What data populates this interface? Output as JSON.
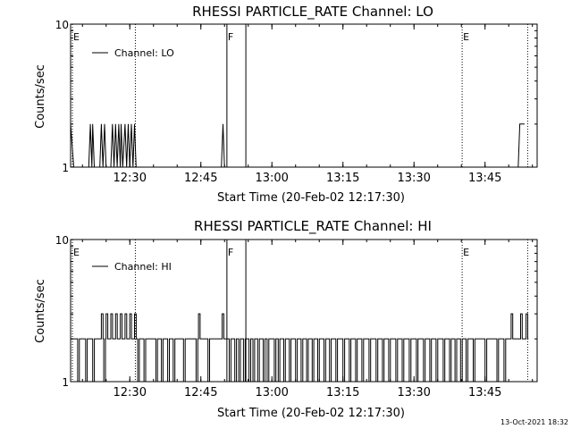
{
  "chart_data": [
    {
      "type": "line",
      "title": "RHESSI PARTICLE_RATE Channel: LO",
      "xlabel": "Start Time (20-Feb-02 12:17:30)",
      "ylabel": "Counts/sec",
      "y_scale": "log",
      "ylim": [
        1,
        10
      ],
      "y_ticks": [
        "1",
        "10"
      ],
      "x_ticks": [
        "12:30",
        "12:45",
        "13:00",
        "13:15",
        "13:30",
        "13:45"
      ],
      "legend": "Channel: LO",
      "series": [
        {
          "name": "Channel: LO",
          "values": [
            {
              "x": "12:17:30",
              "y": 2
            },
            {
              "x": "12:18:10",
              "y": 1
            },
            {
              "x": "12:21:20",
              "y": 1
            },
            {
              "x": "12:21:40",
              "y": 2
            },
            {
              "x": "12:22:00",
              "y": 1
            },
            {
              "x": "12:22:10",
              "y": 2
            },
            {
              "x": "12:22:30",
              "y": 1
            },
            {
              "x": "12:23:40",
              "y": 1
            },
            {
              "x": "12:24:00",
              "y": 2
            },
            {
              "x": "12:24:20",
              "y": 1
            },
            {
              "x": "12:24:40",
              "y": 2
            },
            {
              "x": "12:25:00",
              "y": 1
            },
            {
              "x": "12:26:00",
              "y": 1
            },
            {
              "x": "12:26:20",
              "y": 2
            },
            {
              "x": "12:26:40",
              "y": 1
            },
            {
              "x": "12:27:00",
              "y": 2
            },
            {
              "x": "12:27:20",
              "y": 1
            },
            {
              "x": "12:27:40",
              "y": 2
            },
            {
              "x": "12:28:00",
              "y": 1
            },
            {
              "x": "12:28:10",
              "y": 2
            },
            {
              "x": "12:28:30",
              "y": 1
            },
            {
              "x": "12:29:00",
              "y": 2
            },
            {
              "x": "12:29:20",
              "y": 1
            },
            {
              "x": "12:29:40",
              "y": 2
            },
            {
              "x": "12:30:00",
              "y": 1
            },
            {
              "x": "12:30:20",
              "y": 2
            },
            {
              "x": "12:30:40",
              "y": 1
            },
            {
              "x": "12:31:00",
              "y": 2
            },
            {
              "x": "12:31:20",
              "y": 1
            },
            {
              "x": "12:49:20",
              "y": 1
            },
            {
              "x": "12:49:40",
              "y": 2
            },
            {
              "x": "12:50:00",
              "y": 1
            },
            {
              "x": "13:52:00",
              "y": 1
            },
            {
              "x": "13:52:20",
              "y": 2
            },
            {
              "x": "13:53:20",
              "y": 2
            }
          ]
        }
      ],
      "markers": [
        {
          "label": "E",
          "time": "12:17:30",
          "style": "dotted"
        },
        {
          "label": "",
          "time": "12:31:10",
          "style": "dotted"
        },
        {
          "label": "F",
          "time": "12:50:30",
          "style": "solid"
        },
        {
          "label": "",
          "time": "12:54:30",
          "style": "solid"
        },
        {
          "label": "E",
          "time": "13:40:10",
          "style": "dotted"
        },
        {
          "label": "",
          "time": "13:54:00",
          "style": "dotted"
        }
      ]
    },
    {
      "type": "line",
      "title": "RHESSI PARTICLE_RATE Channel: HI",
      "xlabel": "Start Time (20-Feb-02 12:17:30)",
      "ylabel": "Counts/sec",
      "y_scale": "log",
      "ylim": [
        1,
        10
      ],
      "y_ticks": [
        "1",
        "10"
      ],
      "x_ticks": [
        "12:30",
        "12:45",
        "13:00",
        "13:15",
        "13:30",
        "13:45"
      ],
      "legend": "Channel: HI",
      "series": [
        {
          "name": "Channel: HI",
          "baseline": 2,
          "dips_to_1_at": [
            "12:19:00",
            "12:20:40",
            "12:22:10",
            "12:24:30",
            "12:29:10",
            "12:31:40",
            "12:33:00",
            "12:35:30",
            "12:36:40",
            "12:38:00",
            "12:39:10",
            "12:41:20",
            "12:44:00",
            "12:46:30",
            "12:51:00",
            "12:52:10",
            "12:53:00",
            "12:54:00",
            "12:55:10",
            "12:56:00",
            "12:57:00",
            "12:58:10",
            "12:59:00",
            "13:00:30",
            "13:01:20",
            "13:02:30",
            "13:03:40",
            "13:05:00",
            "13:06:10",
            "13:07:20",
            "13:08:30",
            "13:09:40",
            "13:11:00",
            "13:12:10",
            "13:13:30",
            "13:15:00",
            "13:16:20",
            "13:17:40",
            "13:19:00",
            "13:20:30",
            "13:22:00",
            "13:23:20",
            "13:24:40",
            "13:26:10",
            "13:27:30",
            "13:29:00",
            "13:30:30",
            "13:32:00",
            "13:33:20",
            "13:34:40",
            "13:36:10",
            "13:37:30",
            "13:38:40",
            "13:39:50",
            "13:41:00",
            "13:42:30",
            "13:45:00",
            "13:47:30",
            "13:49:00"
          ],
          "peaks_to_3_at": [
            "12:24:00",
            "12:25:00",
            "12:26:00",
            "12:27:00",
            "12:28:00",
            "12:29:00",
            "12:30:00",
            "12:31:00",
            "12:44:30",
            "12:49:30",
            "13:50:30",
            "13:52:30",
            "13:53:40"
          ]
        }
      ],
      "markers": [
        {
          "label": "E",
          "time": "12:17:30",
          "style": "dotted"
        },
        {
          "label": "",
          "time": "12:31:10",
          "style": "dotted"
        },
        {
          "label": "F",
          "time": "12:50:30",
          "style": "solid"
        },
        {
          "label": "",
          "time": "12:54:30",
          "style": "solid"
        },
        {
          "label": "E",
          "time": "13:40:10",
          "style": "dotted"
        },
        {
          "label": "",
          "time": "13:54:00",
          "style": "dotted"
        }
      ]
    }
  ],
  "footer": {
    "timestamp": "13-Oct-2021 18:32"
  }
}
